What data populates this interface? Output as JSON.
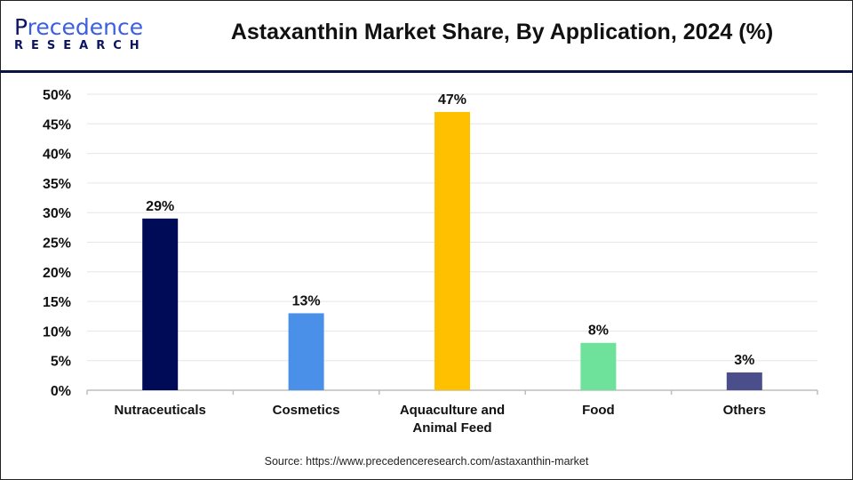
{
  "logo": {
    "line1_a": "P",
    "line1_b": "recedence",
    "line2": "RESEARCH"
  },
  "header": {
    "title": "Astaxanthin Market Share, By Application, 2024 (%)"
  },
  "footer": {
    "source": "Source: https://www.precedenceresearch.com/astaxanthin-market"
  },
  "chart_data": {
    "type": "bar",
    "title": "Astaxanthin Market Share, By Application, 2024 (%)",
    "categories": [
      [
        "Nutraceuticals"
      ],
      [
        "Cosmetics"
      ],
      [
        "Aquaculture and",
        "Animal Feed"
      ],
      [
        "Food"
      ],
      [
        "Others"
      ]
    ],
    "values": [
      29,
      13,
      47,
      8,
      3
    ],
    "data_labels": [
      "29%",
      "13%",
      "47%",
      "8%",
      "3%"
    ],
    "colors": [
      "#000B57",
      "#4A90E8",
      "#FFC000",
      "#6EE29A",
      "#4A4F8C"
    ],
    "ylim": [
      0,
      50
    ],
    "yticks": [
      0,
      5,
      10,
      15,
      20,
      25,
      30,
      35,
      40,
      45,
      50
    ],
    "ytick_labels": [
      "0%",
      "5%",
      "10%",
      "15%",
      "20%",
      "25%",
      "30%",
      "35%",
      "40%",
      "45%",
      "50%"
    ],
    "grid": true,
    "legend": "none"
  }
}
